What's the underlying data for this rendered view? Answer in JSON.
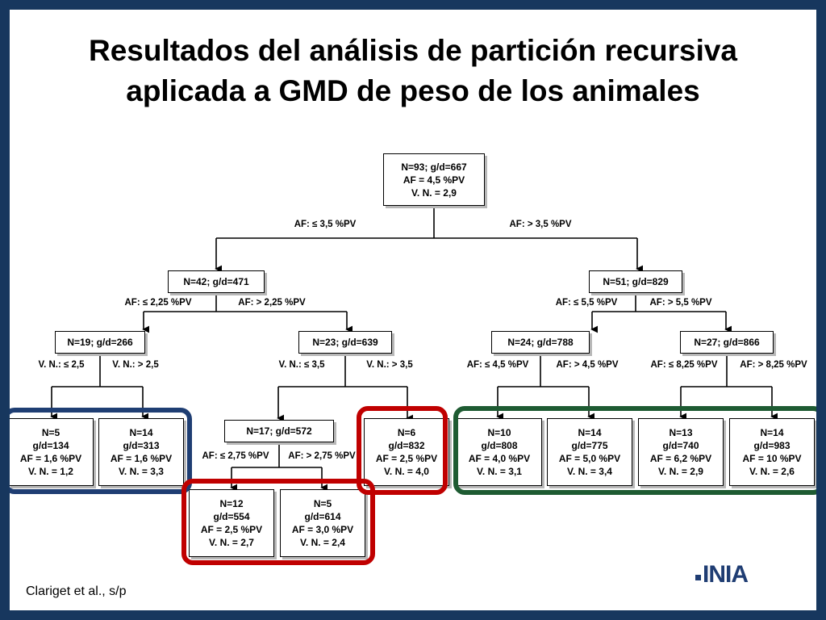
{
  "slide": {
    "title_line1": "Resultados del análisis de partición recursiva",
    "title_line2": "aplicada a GMD de peso de los animales",
    "citation": "Clariget et al., s/p",
    "logo_text": "INIA",
    "accent_color": "#17375e"
  },
  "tree": {
    "nodes": {
      "root": [
        "N=93; g/d=667",
        "AF = 4,5 %PV",
        "V. N. = 2,9"
      ],
      "n42": [
        "N=42; g/d=471"
      ],
      "n51": [
        "N=51; g/d=829"
      ],
      "n19": [
        "N=19; g/d=266"
      ],
      "n23": [
        "N=23; g/d=639"
      ],
      "n24": [
        "N=24; g/d=788"
      ],
      "n27": [
        "N=27; g/d=866"
      ],
      "n17": [
        "N=17; g/d=572"
      ],
      "l5a": [
        "N=5",
        "g/d=134",
        "AF = 1,6 %PV",
        "V. N. = 1,2"
      ],
      "l14a": [
        "N=14",
        "g/d=313",
        "AF = 1,6 %PV",
        "V. N. = 3,3"
      ],
      "l6": [
        "N=6",
        "g/d=832",
        "AF = 2,5 %PV",
        "V. N. = 4,0"
      ],
      "l10": [
        "N=10",
        "g/d=808",
        "AF = 4,0 %PV",
        "V. N. = 3,1"
      ],
      "l14b": [
        "N=14",
        "g/d=775",
        "AF = 5,0 %PV",
        "V. N. = 3,4"
      ],
      "l13": [
        "N=13",
        "g/d=740",
        "AF = 6,2 %PV",
        "V. N. = 2,9"
      ],
      "l14c": [
        "N=14",
        "g/d=983",
        "AF = 10 %PV",
        "V. N. = 2,6"
      ],
      "l12": [
        "N=12",
        "g/d=554",
        "AF = 2,5 %PV",
        "V. N. = 2,7"
      ],
      "l5b": [
        "N=5",
        "g/d=614",
        "AF = 3,0 %PV",
        "V. N. = 2,4"
      ]
    },
    "splits": {
      "root_left": "AF: ≤ 3,5 %PV",
      "root_right": "AF: > 3,5 %PV",
      "n42_left": "AF: ≤ 2,25 %PV",
      "n42_right": "AF: > 2,25 %PV",
      "n51_left": "AF: ≤ 5,5 %PV",
      "n51_right": "AF: > 5,5 %PV",
      "n19_left": "V. N.: ≤ 2,5",
      "n19_right": "V. N.: > 2,5",
      "n23_left": "V. N.: ≤ 3,5",
      "n23_right": "V. N.: > 3,5",
      "n24_left": "AF: ≤ 4,5 %PV",
      "n24_right": "AF: > 4,5 %PV",
      "n27_left": "AF: ≤ 8,25 %PV",
      "n27_right": "AF: > 8,25 %PV",
      "n17_left": "AF: ≤ 2,75 %PV",
      "n17_right": "AF: > 2,75 %PV"
    },
    "highlight_colors": {
      "blue": "#1f3e73",
      "red": "#c00000",
      "green": "#1e5b32"
    }
  }
}
